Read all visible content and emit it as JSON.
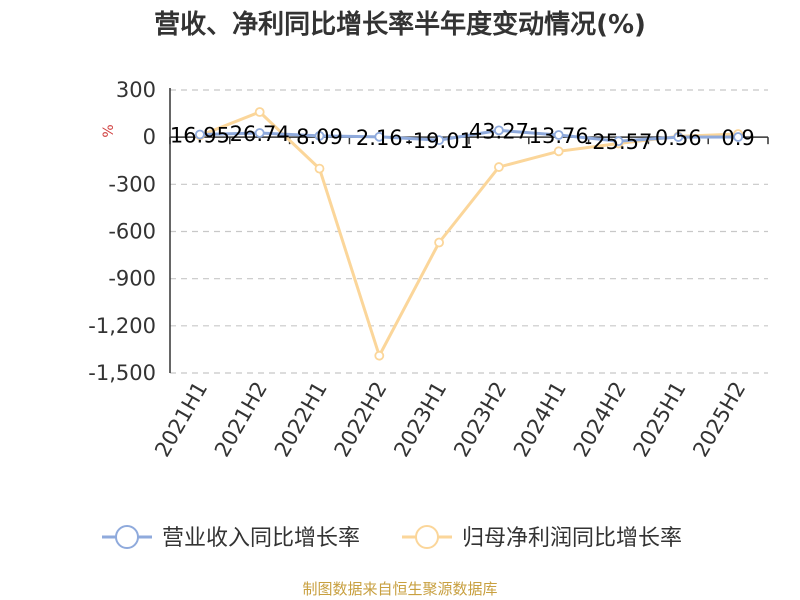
{
  "chart_data": {
    "type": "line",
    "title": "营收、净利同比增长率半年度变动情况(%)",
    "ylabel": "%",
    "ylim": [
      -1500,
      300
    ],
    "yticks": [
      300,
      0,
      -300,
      -600,
      -900,
      -1200,
      -1500
    ],
    "ytick_labels": [
      "300",
      "0",
      "-300",
      "-600",
      "-900",
      "-1,200",
      "-1,500"
    ],
    "categories": [
      "2021H1",
      "2021H2",
      "2022H1",
      "2022H2",
      "2023H1",
      "2023H2",
      "2024H1",
      "2024H2",
      "2025H1",
      "2025H2"
    ],
    "grid": true,
    "legend_position": "bottom",
    "series": [
      {
        "name": "营业收入同比增长率",
        "color": "#8faadc",
        "values": [
          16.95,
          26.74,
          8.09,
          2.16,
          -19.01,
          43.27,
          13.76,
          -25.57,
          0.56,
          0.9
        ],
        "labels": [
          "16.95",
          "26.74",
          "8.09",
          "2.16",
          "-19.01",
          "43.27",
          "13.76",
          "-25.57",
          "0.56",
          "0.9"
        ]
      },
      {
        "name": "归母净利润同比增长率",
        "color": "#fbd69a",
        "values": [
          10,
          160,
          -200,
          -1390,
          -670,
          -190,
          -90,
          -40,
          5,
          20
        ]
      }
    ]
  },
  "source": "制图数据来自恒生聚源数据库"
}
